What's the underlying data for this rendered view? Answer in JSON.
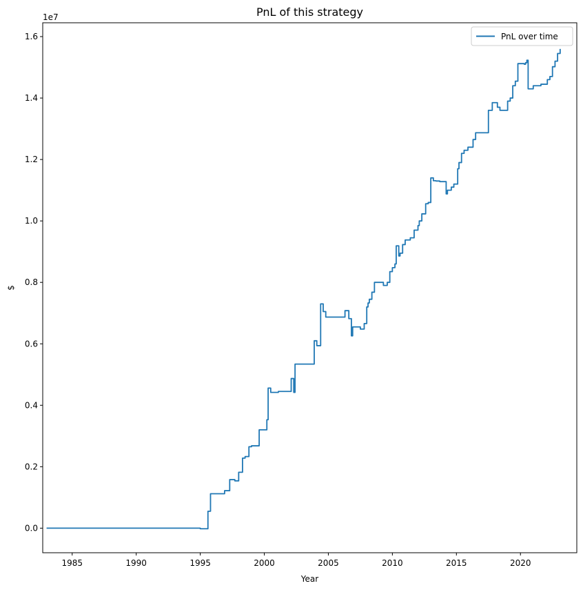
{
  "chart_data": {
    "type": "line",
    "title": "PnL of this strategy",
    "xlabel": "Year",
    "ylabel": "$",
    "y_offset_label": "1e7",
    "y_scale": 10000000,
    "xlim": [
      1982.7,
      2024.4
    ],
    "ylim": [
      -800000,
      16450000
    ],
    "x_ticks": [
      1985,
      1990,
      1995,
      2000,
      2005,
      2010,
      2015,
      2020
    ],
    "x_tick_labels": [
      "1985",
      "1990",
      "1995",
      "2000",
      "2005",
      "2010",
      "2015",
      "2020"
    ],
    "y_ticks": [
      0,
      2000000,
      4000000,
      6000000,
      8000000,
      10000000,
      12000000,
      14000000,
      16000000
    ],
    "y_tick_labels": [
      "0.0",
      "0.2",
      "0.4",
      "0.6",
      "0.8",
      "1.0",
      "1.2",
      "1.4",
      "1.6"
    ],
    "grid": false,
    "legend_position": "upper right",
    "series": [
      {
        "name": "PnL over time",
        "color": "#1f77b4",
        "step": true,
        "x": [
          1983.0,
          1995.0,
          1995.2,
          1995.6,
          1995.8,
          1996.9,
          1997.3,
          1997.7,
          1998.0,
          1998.3,
          1998.5,
          1998.8,
          1999.0,
          1999.6,
          2000.2,
          2000.3,
          2000.5,
          2001.1,
          2002.1,
          2002.3,
          2002.4,
          2003.5,
          2003.9,
          2004.1,
          2004.4,
          2004.6,
          2004.8,
          2005.4,
          2006.3,
          2006.6,
          2006.8,
          2006.9,
          2007.5,
          2007.8,
          2008.0,
          2008.1,
          2008.2,
          2008.4,
          2008.6,
          2009.3,
          2009.6,
          2009.8,
          2010.0,
          2010.2,
          2010.3,
          2010.5,
          2010.6,
          2010.8,
          2011.0,
          2011.4,
          2011.7,
          2012.0,
          2012.1,
          2012.3,
          2012.6,
          2012.8,
          2013.0,
          2013.2,
          2013.4,
          2013.7,
          2014.2,
          2014.3,
          2014.6,
          2014.8,
          2015.1,
          2015.2,
          2015.4,
          2015.6,
          2015.9,
          2016.3,
          2016.5,
          2016.8,
          2017.5,
          2017.8,
          2018.2,
          2018.4,
          2018.6,
          2019.0,
          2019.2,
          2019.4,
          2019.6,
          2019.8,
          2020.3,
          2020.4,
          2020.5,
          2020.6,
          2021.0,
          2021.6,
          2022.1,
          2022.3,
          2022.5,
          2022.7,
          2022.9,
          2023.1
        ],
        "y": [
          0,
          -20000,
          -20000,
          550000,
          1120000,
          1220000,
          1580000,
          1540000,
          1820000,
          2280000,
          2330000,
          2650000,
          2680000,
          3200000,
          3530000,
          4560000,
          4420000,
          4450000,
          4870000,
          4420000,
          5340000,
          5340000,
          6100000,
          5940000,
          7300000,
          7050000,
          6870000,
          6870000,
          7080000,
          6820000,
          6260000,
          6550000,
          6480000,
          6660000,
          7200000,
          7330000,
          7450000,
          7680000,
          8000000,
          7900000,
          8000000,
          8350000,
          8480000,
          8600000,
          9190000,
          8860000,
          8950000,
          9230000,
          9380000,
          9450000,
          9700000,
          9850000,
          10000000,
          10230000,
          10560000,
          10600000,
          11400000,
          11310000,
          11300000,
          11280000,
          10880000,
          11000000,
          11100000,
          11200000,
          11700000,
          11900000,
          12200000,
          12300000,
          12400000,
          12650000,
          12870000,
          12870000,
          13600000,
          13850000,
          13700000,
          13600000,
          13600000,
          13900000,
          14000000,
          14400000,
          14550000,
          15120000,
          15100000,
          15150000,
          15230000,
          14300000,
          14400000,
          14450000,
          14600000,
          14700000,
          15020000,
          15200000,
          15450000,
          15600000
        ]
      }
    ]
  }
}
